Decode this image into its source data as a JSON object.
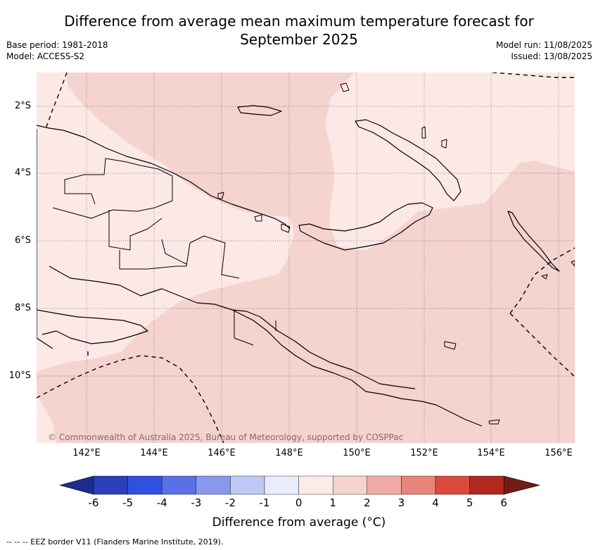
{
  "title": {
    "line1": "Difference from average mean maximum temperature forecast for",
    "line2": "September 2025"
  },
  "meta": {
    "base_period": "Base period: 1981-2018",
    "model": "Model: ACCESS-S2",
    "model_run": "Model run: 11/08/2025",
    "issued": "Issued: 13/08/2025"
  },
  "map": {
    "lat_labels": [
      "2°S",
      "4°S",
      "6°S",
      "8°S",
      "10°S"
    ],
    "lon_labels": [
      "142°E",
      "144°E",
      "146°E",
      "148°E",
      "150°E",
      "152°E",
      "154°E",
      "156°E"
    ],
    "copyright": "© Commonwealth of Australia 2025, Bureau of Meteorology, supported by COSPPac",
    "anomaly_classes": [
      {
        "range": "0 to 1",
        "color": "#fce9e6"
      },
      {
        "range": "1 to 2",
        "color": "#f5d3cf"
      }
    ]
  },
  "colorbar": {
    "ticks": [
      "-6",
      "-5",
      "-4",
      "-3",
      "-2",
      "-1",
      "0",
      "1",
      "2",
      "3",
      "4",
      "5",
      "6"
    ],
    "colors": [
      "#1a2e8c",
      "#2a40b8",
      "#3050e0",
      "#5a70e6",
      "#8898ec",
      "#c0c8f5",
      "#e8ecfb",
      "#fdebe8",
      "#f5d3cf",
      "#f0aca4",
      "#e8847a",
      "#db4a3c",
      "#b0281f",
      "#721c16"
    ],
    "label": "Difference from average (°C)"
  },
  "legend": {
    "eez": "--  --  -- EEZ border V11 (Flanders Marine Institute, 2019)."
  }
}
